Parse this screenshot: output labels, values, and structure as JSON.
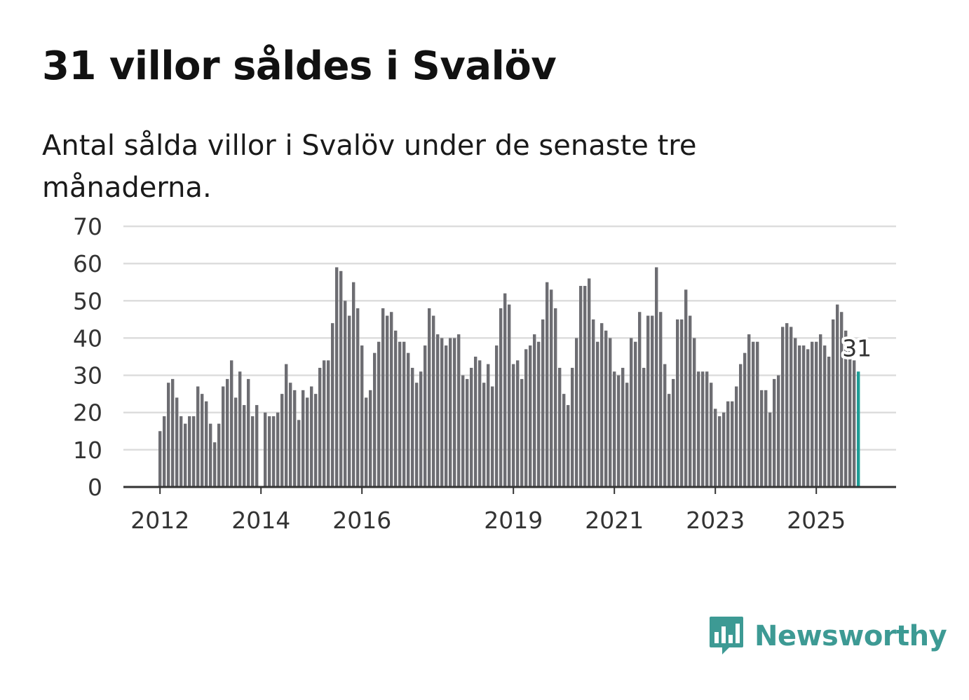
{
  "title": "31 villor såldes i Svalöv",
  "subtitle": "Antal sålda villor i Svalöv under de senaste tre månaderna.",
  "brand": {
    "name": "Newsworthy",
    "color": "#3d9a94"
  },
  "colors": {
    "bar": "#6d6d72",
    "highlight": "#1e9d96",
    "grid": "#dddddd",
    "axis": "#333333"
  },
  "chart_data": {
    "type": "bar",
    "title": "31 villor såldes i Svalöv",
    "ylim": [
      0,
      70
    ],
    "yticks": [
      "0",
      "10",
      "20",
      "30",
      "40",
      "50",
      "60",
      "70"
    ],
    "xticks": [
      {
        "label": "2012",
        "index": 0
      },
      {
        "label": "2014",
        "index": 24
      },
      {
        "label": "2016",
        "index": 48
      },
      {
        "label": "2019",
        "index": 84
      },
      {
        "label": "2021",
        "index": 108
      },
      {
        "label": "2023",
        "index": 132
      },
      {
        "label": "2025",
        "index": 156
      }
    ],
    "highlight_index": 166,
    "highlight_label": "31",
    "values": [
      15,
      19,
      28,
      29,
      24,
      19,
      17,
      19,
      19,
      27,
      25,
      23,
      17,
      12,
      17,
      27,
      29,
      34,
      24,
      31,
      22,
      29,
      19,
      22,
      0,
      20,
      19,
      19,
      20,
      25,
      33,
      28,
      26,
      18,
      26,
      24,
      27,
      25,
      32,
      34,
      34,
      44,
      59,
      58,
      50,
      46,
      55,
      48,
      38,
      24,
      26,
      36,
      39,
      48,
      46,
      47,
      42,
      39,
      39,
      36,
      32,
      28,
      31,
      38,
      48,
      46,
      41,
      40,
      38,
      40,
      40,
      41,
      30,
      29,
      32,
      35,
      34,
      28,
      33,
      27,
      38,
      48,
      52,
      49,
      33,
      34,
      29,
      37,
      38,
      41,
      39,
      45,
      55,
      53,
      48,
      32,
      25,
      22,
      32,
      40,
      54,
      54,
      56,
      45,
      39,
      44,
      42,
      40,
      31,
      30,
      32,
      28,
      40,
      39,
      47,
      32,
      46,
      46,
      59,
      47,
      33,
      25,
      29,
      45,
      45,
      53,
      46,
      40,
      31,
      31,
      31,
      28,
      21,
      19,
      20,
      23,
      23,
      27,
      33,
      36,
      41,
      39,
      39,
      26,
      26,
      20,
      29,
      30,
      43,
      44,
      43,
      40,
      38,
      38,
      37,
      39,
      39,
      41,
      38,
      35,
      45,
      49,
      47,
      42,
      37,
      34,
      31
    ]
  }
}
